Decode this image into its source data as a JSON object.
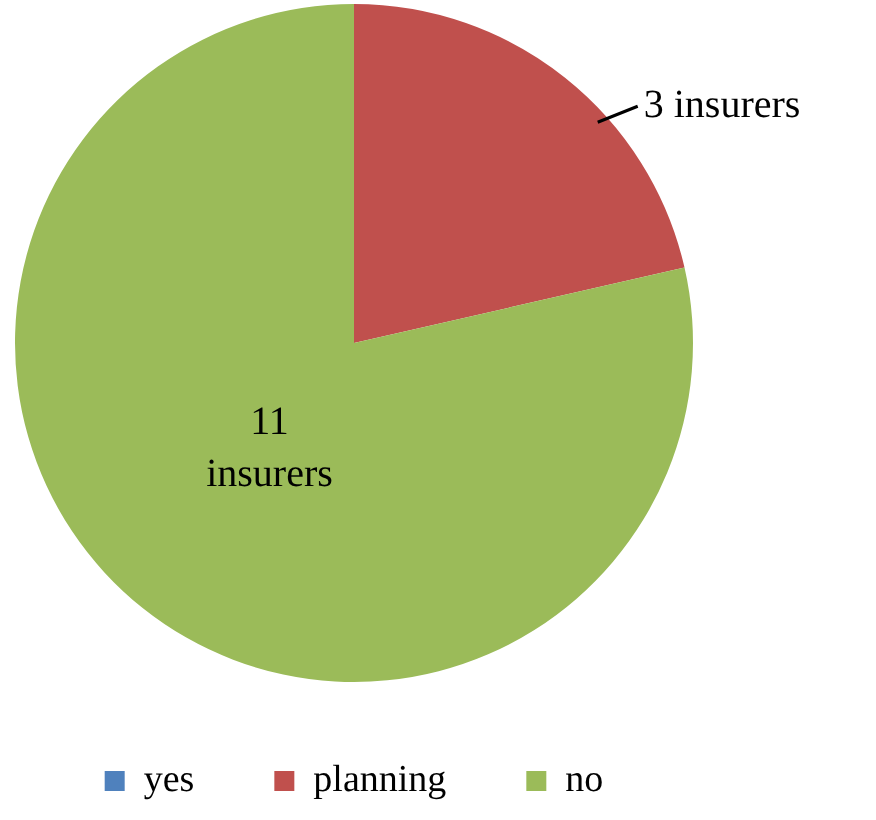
{
  "chart_data": {
    "type": "pie",
    "categories": [
      "yes",
      "planning",
      "no"
    ],
    "values": [
      0,
      3,
      11
    ],
    "colors": [
      "#4f81bd",
      "#c0504d",
      "#9bbb59"
    ],
    "value_labels": [
      null,
      "3 insurers",
      "11 insurers"
    ],
    "legend": "bottom"
  }
}
